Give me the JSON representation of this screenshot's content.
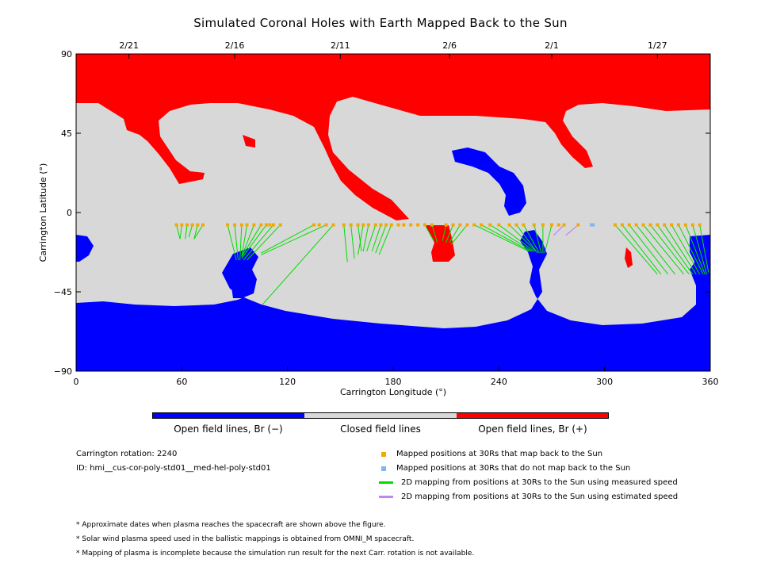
{
  "title": "Simulated Coronal Holes with Earth Mapped Back to the Sun",
  "chart_data": {
    "type": "map",
    "xlabel": "Carrington Longitude (°)",
    "ylabel": "Carrington Latitude (°)",
    "xlim": [
      0,
      360
    ],
    "ylim": [
      -90,
      90
    ],
    "x_ticks": [
      "0",
      "60",
      "120",
      "180",
      "240",
      "300",
      "360"
    ],
    "y_ticks": [
      "−90",
      "−45",
      "0",
      "45",
      "90"
    ],
    "top_date_ticks": [
      {
        "lon": 30,
        "label": "2/21"
      },
      {
        "lon": 90,
        "label": "2/16"
      },
      {
        "lon": 150,
        "label": "2/11"
      },
      {
        "lon": 212,
        "label": "2/6"
      },
      {
        "lon": 270,
        "label": "2/1"
      },
      {
        "lon": 330,
        "label": "1/27"
      }
    ],
    "colors": {
      "positive": "#ff0000",
      "negative": "#0000ff",
      "closed": "#d8d8d8",
      "mapped": "#f4a900",
      "unmapped": "#7fb6f0",
      "measured": "#00dd00",
      "estimated": "#bb88ee"
    },
    "mapped_points_lat": -7,
    "mapped_points_lon": [
      57,
      60,
      63,
      66,
      69,
      72,
      86,
      90,
      94,
      97,
      101,
      105,
      108,
      110,
      112,
      116,
      135,
      138,
      142,
      146,
      152,
      156,
      160,
      163,
      166,
      170,
      173,
      176,
      179,
      183,
      186,
      190,
      194,
      198,
      202,
      210,
      214,
      218,
      222,
      226,
      230,
      235,
      240,
      246,
      250,
      254,
      260,
      265,
      270,
      274,
      277,
      285,
      306,
      310,
      314,
      318,
      322,
      326,
      330,
      334,
      338,
      342,
      346,
      350,
      354
    ],
    "unmapped_points_lon": [
      293
    ],
    "measured_mappings": [
      [
        [
          57,
          -7
        ],
        [
          59,
          -15
        ]
      ],
      [
        [
          60,
          -7
        ],
        [
          59,
          -15
        ]
      ],
      [
        [
          63,
          -7
        ],
        [
          62,
          -15
        ]
      ],
      [
        [
          66,
          -7
        ],
        [
          64,
          -14
        ]
      ],
      [
        [
          69,
          -7
        ],
        [
          67,
          -15
        ]
      ],
      [
        [
          72,
          -7
        ],
        [
          67,
          -15
        ]
      ],
      [
        [
          86,
          -7
        ],
        [
          91,
          -27
        ]
      ],
      [
        [
          90,
          -7
        ],
        [
          92,
          -27
        ]
      ],
      [
        [
          94,
          -7
        ],
        [
          93,
          -27
        ]
      ],
      [
        [
          97,
          -7
        ],
        [
          94,
          -25
        ]
      ],
      [
        [
          101,
          -7
        ],
        [
          94,
          -25
        ]
      ],
      [
        [
          105,
          -7
        ],
        [
          94,
          -25
        ]
      ],
      [
        [
          108,
          -7
        ],
        [
          94,
          -26
        ]
      ],
      [
        [
          112,
          -7
        ],
        [
          95,
          -27
        ]
      ],
      [
        [
          116,
          -7
        ],
        [
          97,
          -27
        ]
      ],
      [
        [
          135,
          -7
        ],
        [
          105,
          -23
        ]
      ],
      [
        [
          142,
          -7
        ],
        [
          105,
          -24
        ]
      ],
      [
        [
          146,
          -7
        ],
        [
          106,
          -52
        ]
      ],
      [
        [
          152,
          -7
        ],
        [
          154,
          -28
        ]
      ],
      [
        [
          156,
          -7
        ],
        [
          158,
          -26
        ]
      ],
      [
        [
          160,
          -7
        ],
        [
          162,
          -22
        ]
      ],
      [
        [
          163,
          -7
        ],
        [
          160,
          -24
        ]
      ],
      [
        [
          166,
          -7
        ],
        [
          163,
          -22
        ]
      ],
      [
        [
          170,
          -7
        ],
        [
          165,
          -22
        ]
      ],
      [
        [
          173,
          -7
        ],
        [
          168,
          -22
        ]
      ],
      [
        [
          176,
          -7
        ],
        [
          170,
          -23
        ]
      ],
      [
        [
          179,
          -7
        ],
        [
          172,
          -24
        ]
      ],
      [
        [
          198,
          -7
        ],
        [
          203,
          -16
        ]
      ],
      [
        [
          202,
          -7
        ],
        [
          205,
          -17
        ]
      ],
      [
        [
          210,
          -7
        ],
        [
          208,
          -16
        ]
      ],
      [
        [
          214,
          -7
        ],
        [
          210,
          -17
        ]
      ],
      [
        [
          218,
          -7
        ],
        [
          212,
          -17
        ]
      ],
      [
        [
          222,
          -7
        ],
        [
          213,
          -18
        ]
      ],
      [
        [
          226,
          -7
        ],
        [
          257,
          -22
        ]
      ],
      [
        [
          230,
          -7
        ],
        [
          258,
          -22
        ]
      ],
      [
        [
          235,
          -7
        ],
        [
          259,
          -22
        ]
      ],
      [
        [
          240,
          -7
        ],
        [
          260,
          -22
        ]
      ],
      [
        [
          246,
          -7
        ],
        [
          261,
          -22
        ]
      ],
      [
        [
          250,
          -7
        ],
        [
          262,
          -23
        ]
      ],
      [
        [
          254,
          -7
        ],
        [
          263,
          -23
        ]
      ],
      [
        [
          260,
          -7
        ],
        [
          264,
          -23
        ]
      ],
      [
        [
          265,
          -7
        ],
        [
          265,
          -23
        ]
      ],
      [
        [
          270,
          -7
        ],
        [
          266,
          -23
        ]
      ],
      [
        [
          306,
          -7
        ],
        [
          330,
          -35
        ]
      ],
      [
        [
          310,
          -7
        ],
        [
          332,
          -35
        ]
      ],
      [
        [
          314,
          -7
        ],
        [
          336,
          -35
        ]
      ],
      [
        [
          318,
          -7
        ],
        [
          340,
          -35
        ]
      ],
      [
        [
          322,
          -7
        ],
        [
          345,
          -35
        ]
      ],
      [
        [
          326,
          -7
        ],
        [
          348,
          -35
        ]
      ],
      [
        [
          330,
          -7
        ],
        [
          350,
          -35
        ]
      ],
      [
        [
          334,
          -7
        ],
        [
          352,
          -35
        ]
      ],
      [
        [
          338,
          -7
        ],
        [
          354,
          -35
        ]
      ],
      [
        [
          342,
          -7
        ],
        [
          356,
          -35
        ]
      ],
      [
        [
          346,
          -7
        ],
        [
          357,
          -35
        ]
      ],
      [
        [
          350,
          -7
        ],
        [
          358,
          -35
        ]
      ],
      [
        [
          354,
          -7
        ],
        [
          359,
          -34
        ]
      ]
    ],
    "estimated_mappings": [
      [
        [
          277,
          -7
        ],
        [
          271,
          -13
        ]
      ],
      [
        [
          285,
          -7
        ],
        [
          278,
          -13
        ]
      ]
    ]
  },
  "colorbar_labels": [
    "Open field lines, Br (−)",
    "Closed field lines",
    "Open field lines, Br (+)"
  ],
  "info": {
    "rotation": "Carrington rotation: 2240",
    "id": "ID: hmi__cus-cor-poly-std01__med-hel-poly-std01"
  },
  "legend": [
    "Mapped positions at 30Rs that map back to the Sun",
    "Mapped positions at 30Rs that do not map back to the Sun",
    "2D mapping from positions at 30Rs to the Sun using measured speed",
    "2D mapping from positions at 30Rs to the Sun using estimated speed"
  ],
  "notes": [
    "* Approximate dates when plasma reaches the spacecraft are shown above the figure.",
    "* Solar wind plasma speed used in the ballistic mappings is obtained from OMNI_M spacecraft.",
    "* Mapping of plasma is incomplete because the simulation run result for the next Carr. rotation is not available."
  ]
}
